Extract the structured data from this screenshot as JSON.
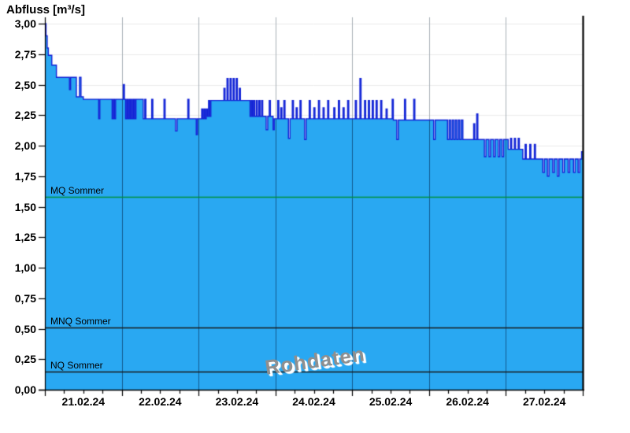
{
  "chart": {
    "title": "Abfluss [m³/s]",
    "watermark": "Rohdaten"
  },
  "chart_data": {
    "type": "area",
    "title": "Abfluss [m³/s]",
    "unit": "m³/s",
    "x_axis": {
      "categories": [
        "21.02.24",
        "22.02.24",
        "23.02.24",
        "24.02.24",
        "25.02.24",
        "26.02.24",
        "27.02.24"
      ],
      "span_days": 7,
      "minor_ticks_per_day": 4,
      "grid": true
    },
    "y_axis": {
      "min": 0,
      "max": 3,
      "step": 0.25,
      "tick_labels": [
        "0,00",
        "0,25",
        "0,50",
        "0,75",
        "1,00",
        "1,25",
        "1,50",
        "1,75",
        "2,00",
        "2,25",
        "2,50",
        "2,75",
        "3,00"
      ],
      "grid": true
    },
    "reference_lines": [
      {
        "label": "MQ Sommer",
        "value": 1.58,
        "color": "#00913c"
      },
      {
        "label": "MNQ Sommer",
        "value": 0.51,
        "color": "#1a1a1a"
      },
      {
        "label": "NQ Sommer",
        "value": 0.15,
        "color": "#1a1a1a"
      }
    ],
    "colors": {
      "fill": "#29a8f2",
      "line": "#1322d6",
      "grid_horizontal": "#ececec",
      "grid_vertical_light": "#a7b0b6",
      "grid_vertical_on_fill": "rgba(0,25,60,0.55)",
      "frame": "#000000"
    },
    "series": [
      {
        "name": "Abfluss Rohdaten",
        "step_points": [
          [
            0.0,
            3.0
          ],
          [
            0.015,
            2.9
          ],
          [
            0.03,
            2.8
          ],
          [
            0.045,
            2.74
          ],
          [
            0.09,
            2.66
          ],
          [
            0.15,
            2.56
          ],
          [
            0.32,
            2.46
          ],
          [
            0.335,
            2.56
          ],
          [
            0.41,
            2.4
          ],
          [
            0.45,
            2.56
          ],
          [
            0.47,
            2.4
          ],
          [
            0.5,
            2.38
          ],
          [
            0.7,
            2.22
          ],
          [
            0.715,
            2.38
          ],
          [
            0.875,
            2.22
          ],
          [
            0.89,
            2.38
          ],
          [
            0.905,
            2.22
          ],
          [
            0.92,
            2.38
          ],
          [
            1.02,
            2.5
          ],
          [
            1.035,
            2.38
          ],
          [
            1.05,
            2.22
          ],
          [
            1.065,
            2.38
          ],
          [
            1.08,
            2.22
          ],
          [
            1.095,
            2.38
          ],
          [
            1.11,
            2.22
          ],
          [
            1.125,
            2.38
          ],
          [
            1.14,
            2.22
          ],
          [
            1.155,
            2.38
          ],
          [
            1.17,
            2.22
          ],
          [
            1.185,
            2.38
          ],
          [
            1.28,
            2.22
          ],
          [
            1.3,
            2.38
          ],
          [
            1.315,
            2.22
          ],
          [
            1.39,
            2.38
          ],
          [
            1.405,
            2.22
          ],
          [
            1.55,
            2.38
          ],
          [
            1.565,
            2.22
          ],
          [
            1.7,
            2.12
          ],
          [
            1.72,
            2.22
          ],
          [
            1.86,
            2.38
          ],
          [
            1.875,
            2.22
          ],
          [
            1.97,
            2.09
          ],
          [
            1.985,
            2.22
          ],
          [
            2.04,
            2.3
          ],
          [
            2.055,
            2.22
          ],
          [
            2.07,
            2.3
          ],
          [
            2.085,
            2.22
          ],
          [
            2.1,
            2.3
          ],
          [
            2.115,
            2.24
          ],
          [
            2.13,
            2.37
          ],
          [
            2.145,
            2.24
          ],
          [
            2.16,
            2.37
          ],
          [
            2.33,
            2.47
          ],
          [
            2.345,
            2.37
          ],
          [
            2.37,
            2.55
          ],
          [
            2.385,
            2.37
          ],
          [
            2.41,
            2.55
          ],
          [
            2.425,
            2.37
          ],
          [
            2.45,
            2.55
          ],
          [
            2.465,
            2.37
          ],
          [
            2.49,
            2.55
          ],
          [
            2.505,
            2.37
          ],
          [
            2.53,
            2.47
          ],
          [
            2.545,
            2.37
          ],
          [
            2.67,
            2.24
          ],
          [
            2.685,
            2.37
          ],
          [
            2.7,
            2.24
          ],
          [
            2.715,
            2.37
          ],
          [
            2.73,
            2.24
          ],
          [
            2.75,
            2.37
          ],
          [
            2.765,
            2.24
          ],
          [
            2.785,
            2.37
          ],
          [
            2.8,
            2.24
          ],
          [
            2.82,
            2.37
          ],
          [
            2.835,
            2.24
          ],
          [
            2.88,
            2.13
          ],
          [
            2.9,
            2.24
          ],
          [
            2.92,
            2.37
          ],
          [
            2.935,
            2.24
          ],
          [
            2.97,
            2.13
          ],
          [
            2.985,
            2.22
          ],
          [
            3.03,
            2.37
          ],
          [
            3.045,
            2.22
          ],
          [
            3.07,
            2.31
          ],
          [
            3.085,
            2.22
          ],
          [
            3.11,
            2.37
          ],
          [
            3.125,
            2.22
          ],
          [
            3.17,
            2.06
          ],
          [
            3.19,
            2.22
          ],
          [
            3.22,
            2.37
          ],
          [
            3.235,
            2.22
          ],
          [
            3.27,
            2.31
          ],
          [
            3.285,
            2.22
          ],
          [
            3.32,
            2.37
          ],
          [
            3.335,
            2.22
          ],
          [
            3.38,
            2.05
          ],
          [
            3.4,
            2.22
          ],
          [
            3.44,
            2.37
          ],
          [
            3.455,
            2.22
          ],
          [
            3.5,
            2.31
          ],
          [
            3.515,
            2.22
          ],
          [
            3.56,
            2.37
          ],
          [
            3.575,
            2.22
          ],
          [
            3.62,
            2.31
          ],
          [
            3.635,
            2.22
          ],
          [
            3.68,
            2.37
          ],
          [
            3.695,
            2.22
          ],
          [
            3.76,
            2.31
          ],
          [
            3.775,
            2.22
          ],
          [
            3.82,
            2.37
          ],
          [
            3.835,
            2.22
          ],
          [
            3.88,
            2.31
          ],
          [
            3.895,
            2.22
          ],
          [
            3.94,
            2.37
          ],
          [
            3.955,
            2.22
          ],
          [
            4.04,
            2.37
          ],
          [
            4.055,
            2.22
          ],
          [
            4.1,
            2.55
          ],
          [
            4.115,
            2.22
          ],
          [
            4.16,
            2.37
          ],
          [
            4.175,
            2.22
          ],
          [
            4.21,
            2.37
          ],
          [
            4.225,
            2.22
          ],
          [
            4.26,
            2.37
          ],
          [
            4.275,
            2.22
          ],
          [
            4.31,
            2.37
          ],
          [
            4.325,
            2.22
          ],
          [
            4.37,
            2.37
          ],
          [
            4.385,
            2.22
          ],
          [
            4.44,
            2.3
          ],
          [
            4.455,
            2.22
          ],
          [
            4.52,
            2.38
          ],
          [
            4.535,
            2.21
          ],
          [
            4.58,
            2.05
          ],
          [
            4.6,
            2.21
          ],
          [
            4.68,
            2.38
          ],
          [
            4.695,
            2.21
          ],
          [
            4.8,
            2.38
          ],
          [
            4.815,
            2.21
          ],
          [
            5.06,
            2.05
          ],
          [
            5.08,
            2.21
          ],
          [
            5.24,
            2.05
          ],
          [
            5.26,
            2.21
          ],
          [
            5.28,
            2.05
          ],
          [
            5.3,
            2.21
          ],
          [
            5.32,
            2.05
          ],
          [
            5.34,
            2.21
          ],
          [
            5.36,
            2.05
          ],
          [
            5.38,
            2.21
          ],
          [
            5.4,
            2.05
          ],
          [
            5.42,
            2.21
          ],
          [
            5.44,
            2.05
          ],
          [
            5.58,
            2.18
          ],
          [
            5.595,
            2.05
          ],
          [
            5.62,
            2.26
          ],
          [
            5.635,
            2.05
          ],
          [
            5.72,
            1.91
          ],
          [
            5.74,
            2.05
          ],
          [
            5.78,
            1.91
          ],
          [
            5.8,
            2.05
          ],
          [
            5.84,
            1.91
          ],
          [
            5.86,
            2.05
          ],
          [
            5.9,
            1.91
          ],
          [
            5.92,
            2.05
          ],
          [
            5.95,
            1.91
          ],
          [
            5.97,
            2.05
          ],
          [
            6.03,
            1.97
          ],
          [
            6.06,
            2.06
          ],
          [
            6.075,
            1.97
          ],
          [
            6.11,
            2.06
          ],
          [
            6.125,
            1.97
          ],
          [
            6.16,
            2.06
          ],
          [
            6.175,
            1.97
          ],
          [
            6.22,
            1.89
          ],
          [
            6.25,
            2.01
          ],
          [
            6.265,
            1.89
          ],
          [
            6.31,
            2.01
          ],
          [
            6.325,
            1.89
          ],
          [
            6.37,
            2.01
          ],
          [
            6.385,
            1.89
          ],
          [
            6.48,
            1.78
          ],
          [
            6.5,
            1.89
          ],
          [
            6.54,
            1.75
          ],
          [
            6.56,
            1.89
          ],
          [
            6.61,
            1.78
          ],
          [
            6.63,
            1.89
          ],
          [
            6.67,
            1.75
          ],
          [
            6.69,
            1.89
          ],
          [
            6.74,
            1.78
          ],
          [
            6.76,
            1.89
          ],
          [
            6.81,
            1.78
          ],
          [
            6.83,
            1.89
          ],
          [
            6.88,
            1.78
          ],
          [
            6.9,
            1.89
          ],
          [
            6.94,
            1.78
          ],
          [
            6.96,
            1.89
          ],
          [
            6.985,
            1.95
          ]
        ]
      }
    ]
  }
}
